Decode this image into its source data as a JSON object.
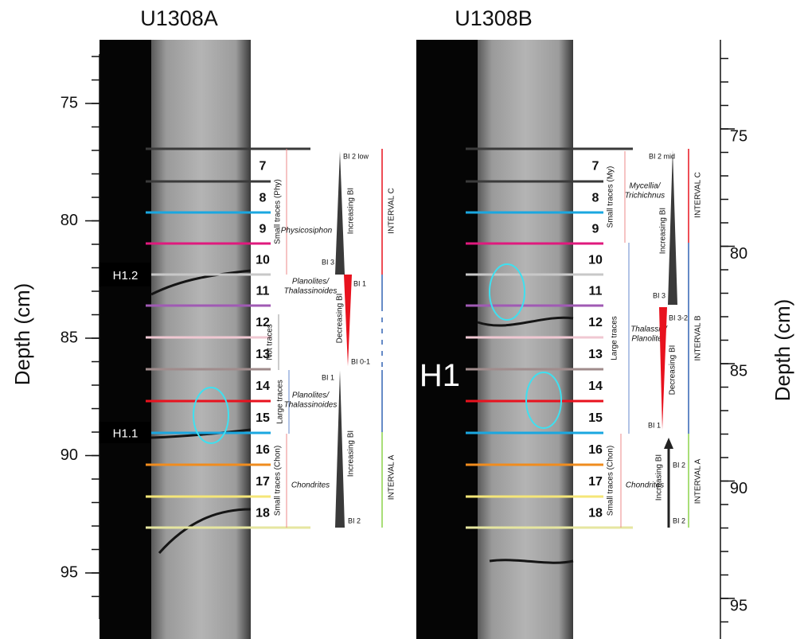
{
  "axis_title": "Depth (cm)",
  "panels": [
    {
      "title": "U1308A",
      "depth_ticks": [
        75,
        80,
        85,
        90,
        95
      ],
      "levels": [
        7,
        8,
        9,
        10,
        11,
        12,
        13,
        14,
        15,
        16,
        17,
        18
      ],
      "horizons": [
        "H1.2",
        "H1.1"
      ],
      "trace_groups": [
        "Small traces (Phy)",
        "Not traces",
        "Large traces",
        "Small traces (Chon)"
      ],
      "taxa": [
        [
          "Physicosiphon"
        ],
        [
          "Planolites/",
          "Thalassinoides"
        ],
        [
          "Planolites/",
          "Thalassinoides"
        ],
        [
          "Chondrites"
        ]
      ],
      "bi_trends": [
        {
          "trend": "Increasing BI",
          "top": "BI 2 low",
          "bottom": "BI 3"
        },
        {
          "trend": "Decreasing BI",
          "top": "BI 1",
          "bottom": "BI 0-1"
        },
        {
          "trend": "Increasing BI",
          "top": "BI 1",
          "bottom": "BI 2"
        }
      ],
      "intervals": [
        "INTERVAL C",
        "INTERVAL A"
      ]
    },
    {
      "title": "U1308B",
      "depth_ticks": [
        75,
        80,
        85,
        90,
        95
      ],
      "levels": [
        7,
        8,
        9,
        10,
        11,
        12,
        13,
        14,
        15,
        16,
        17,
        18
      ],
      "horizons": [
        "H1"
      ],
      "trace_groups": [
        "Small traces (My)",
        "Large traces",
        "Small traces (Chon)"
      ],
      "taxa": [
        [
          "Mycellia/",
          "Trichichnus"
        ],
        [
          "Thalassin/",
          "Planolites"
        ],
        [
          "Chondrites"
        ]
      ],
      "bi_trends": [
        {
          "trend": "Increasing BI",
          "top": "BI 2 mid",
          "bottom": "BI 3"
        },
        {
          "trend": "Decreasing BI",
          "top": "BI 3-2",
          "bottom": "BI 1"
        },
        {
          "trend": "Increasing BI",
          "top": "BI 2",
          "bottom": "BI 2"
        }
      ],
      "intervals": [
        "INTERVAL C",
        "INTERVAL B",
        "INTERVAL A"
      ]
    }
  ]
}
